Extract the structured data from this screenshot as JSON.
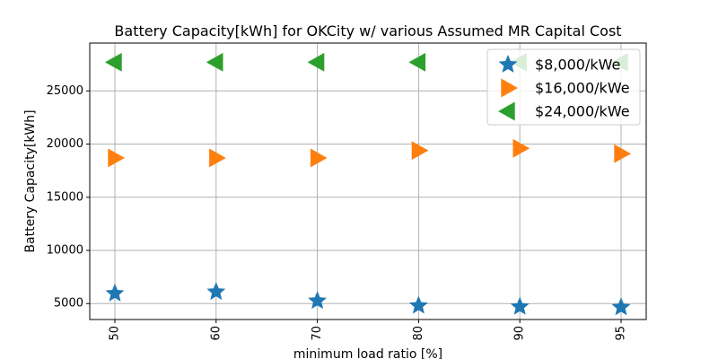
{
  "chart_data": {
    "type": "scatter",
    "title": "Battery Capacity[kWh] for OKCity w/ various Assumed MR Capital Cost",
    "xlabel": "minimum load ratio [%]",
    "ylabel": "Battery Capacity[kWh]",
    "categories": [
      "50",
      "60",
      "70",
      "80",
      "90",
      "95"
    ],
    "yticks": [
      5000,
      10000,
      15000,
      20000,
      25000
    ],
    "ylim": [
      3500,
      29500
    ],
    "grid": true,
    "legend_position": "top-right",
    "series": [
      {
        "name": "$8,000/kWe",
        "marker": "star",
        "color": "#1f77b4",
        "values": [
          5950,
          6100,
          5250,
          4800,
          4700,
          4650
        ]
      },
      {
        "name": "$16,000/kWe",
        "marker": "triangle-right",
        "color": "#ff7f0e",
        "values": [
          18700,
          18700,
          18700,
          19400,
          19600,
          19100
        ]
      },
      {
        "name": "$24,000/kWe",
        "marker": "triangle-left",
        "color": "#2ca02c",
        "values": [
          27700,
          27700,
          27700,
          27700,
          27700,
          27700
        ]
      }
    ]
  }
}
